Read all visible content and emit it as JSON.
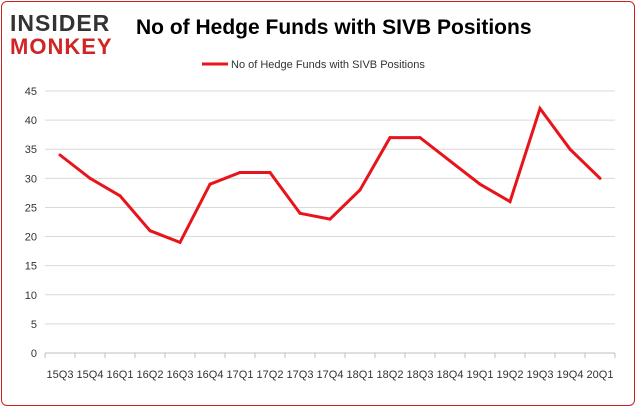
{
  "logo": {
    "line1": "INSIDER",
    "line2": "MONKEY"
  },
  "colors": {
    "series": "#e8141b",
    "frame": "#cc1f1f",
    "grid": "#d9d9d9",
    "logo_dark": "#333333",
    "logo_red": "#d12525"
  },
  "chart_data": {
    "type": "line",
    "title": "No of Hedge Funds with SIVB Positions",
    "xlabel": "",
    "ylabel": "",
    "ylim": [
      0,
      45
    ],
    "yticks": [
      0,
      5,
      10,
      15,
      20,
      25,
      30,
      35,
      40,
      45
    ],
    "grid": true,
    "legend": "top-center",
    "categories": [
      "15Q3",
      "15Q4",
      "16Q1",
      "16Q2",
      "16Q3",
      "16Q4",
      "17Q1",
      "17Q2",
      "17Q3",
      "17Q4",
      "18Q1",
      "18Q2",
      "18Q3",
      "18Q4",
      "19Q1",
      "19Q2",
      "19Q3",
      "19Q4",
      "20Q1"
    ],
    "series": [
      {
        "name": "No of Hedge Funds with SIVB Positions",
        "values": [
          34,
          30,
          27,
          21,
          19,
          29,
          31,
          31,
          24,
          23,
          28,
          37,
          37,
          33,
          29,
          26,
          42,
          35,
          30
        ]
      }
    ]
  }
}
